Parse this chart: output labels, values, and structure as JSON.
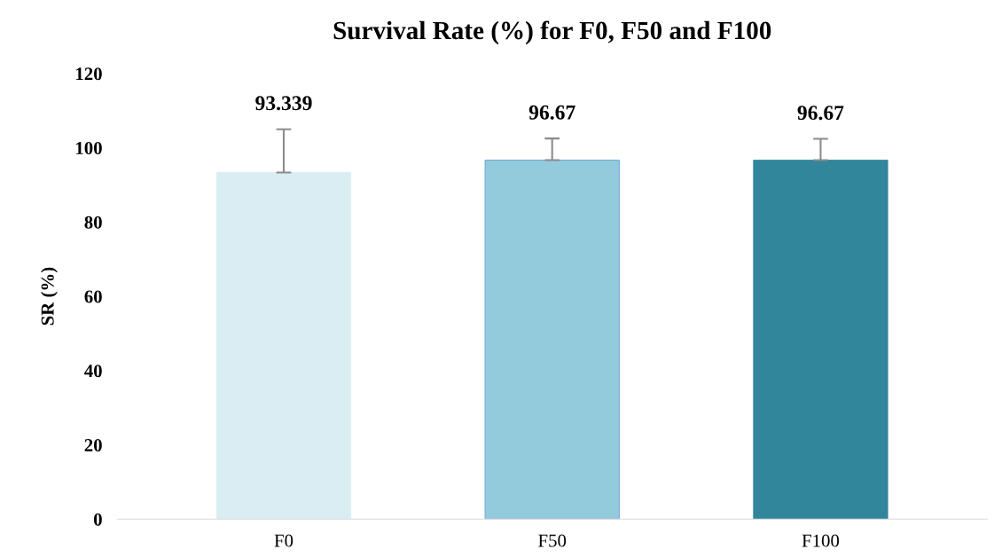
{
  "chart_data": {
    "type": "bar",
    "title": "Survival Rate (%) for F0, F50 and F100",
    "ylabel": "SR (%)",
    "categories": [
      "F0",
      "F50",
      "F100"
    ],
    "values": [
      93.339,
      96.67,
      96.67
    ],
    "colors": [
      "#daedf3",
      "#94cbdc",
      "#31869b"
    ],
    "errors": [
      [
        93.339,
        105.0
      ],
      [
        96.67,
        102.5
      ],
      [
        96.67,
        102.4
      ]
    ],
    "ylim": [
      0,
      120
    ],
    "yticks": [
      0,
      20,
      40,
      60,
      80,
      100,
      120
    ],
    "grid": false,
    "data_labels": true
  }
}
